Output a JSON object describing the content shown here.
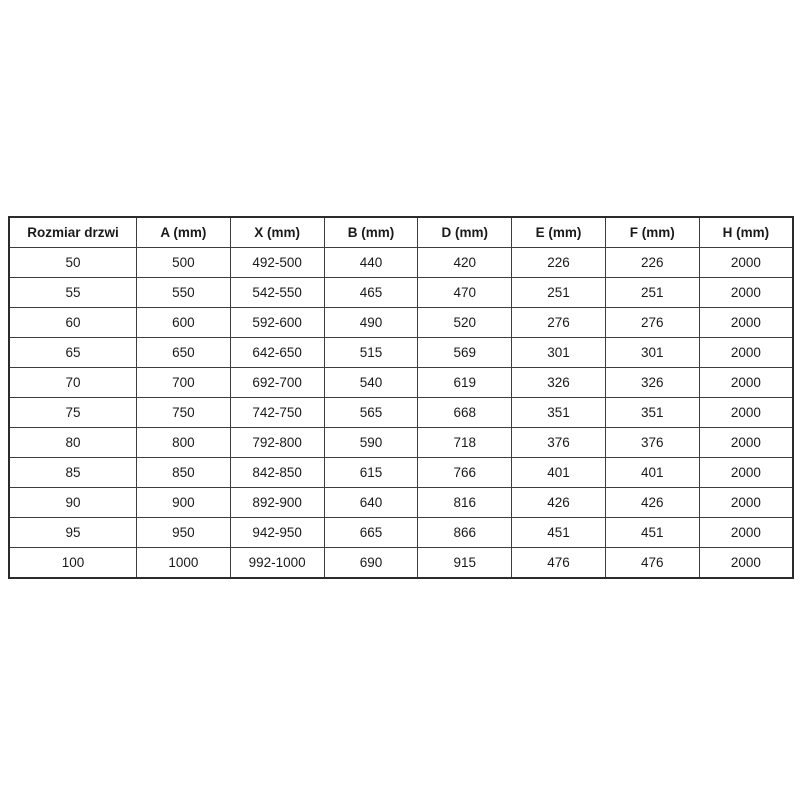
{
  "table": {
    "headers": [
      "Rozmiar drzwi",
      "A (mm)",
      "X (mm)",
      "B (mm)",
      "D (mm)",
      "E (mm)",
      "F (mm)",
      "H (mm)"
    ],
    "rows": [
      [
        "50",
        "500",
        "492-500",
        "440",
        "420",
        "226",
        "226",
        "2000"
      ],
      [
        "55",
        "550",
        "542-550",
        "465",
        "470",
        "251",
        "251",
        "2000"
      ],
      [
        "60",
        "600",
        "592-600",
        "490",
        "520",
        "276",
        "276",
        "2000"
      ],
      [
        "65",
        "650",
        "642-650",
        "515",
        "569",
        "301",
        "301",
        "2000"
      ],
      [
        "70",
        "700",
        "692-700",
        "540",
        "619",
        "326",
        "326",
        "2000"
      ],
      [
        "75",
        "750",
        "742-750",
        "565",
        "668",
        "351",
        "351",
        "2000"
      ],
      [
        "80",
        "800",
        "792-800",
        "590",
        "718",
        "376",
        "376",
        "2000"
      ],
      [
        "85",
        "850",
        "842-850",
        "615",
        "766",
        "401",
        "401",
        "2000"
      ],
      [
        "90",
        "900",
        "892-900",
        "640",
        "816",
        "426",
        "426",
        "2000"
      ],
      [
        "95",
        "950",
        "942-950",
        "665",
        "866",
        "451",
        "451",
        "2000"
      ],
      [
        "100",
        "1000",
        "992-1000",
        "690",
        "915",
        "476",
        "476",
        "2000"
      ]
    ]
  }
}
